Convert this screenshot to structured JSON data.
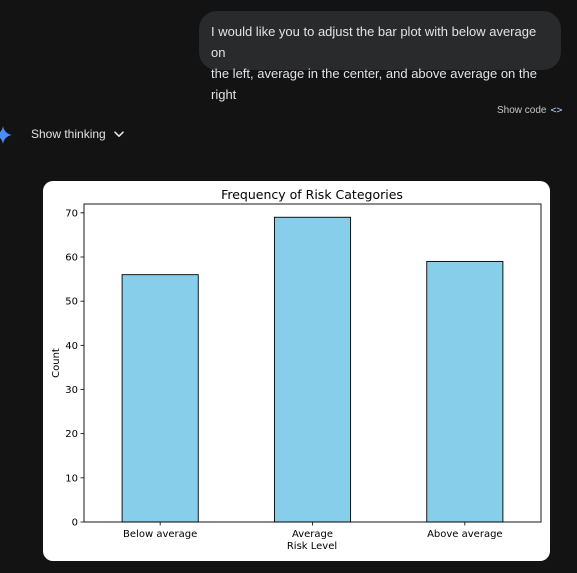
{
  "user_message": {
    "line1": "I would like you to adjust the bar plot with below average on",
    "line2": "the left, average in the center, and above average on the right"
  },
  "response": {
    "show_code_label": "Show code",
    "show_thinking_label": "Show thinking"
  },
  "colors": {
    "background": "#131313",
    "bubble": "#282a2c",
    "bar_fill": "#87ceeb",
    "gem_blue": "#4b8df8"
  },
  "icons": {
    "show_code": "code-brackets-icon",
    "gem": "gemini-sparkle-icon",
    "chevron": "chevron-down-icon"
  },
  "chart_data": {
    "type": "bar",
    "title": "Frequency of Risk Categories",
    "xlabel": "Risk Level",
    "ylabel": "Count",
    "categories": [
      "Below average",
      "Average",
      "Above average"
    ],
    "values": [
      56,
      69,
      59
    ],
    "ylim": [
      0,
      72
    ],
    "yticks": [
      0,
      10,
      20,
      30,
      40,
      50,
      60,
      70
    ],
    "grid": false,
    "bar_color": "#87ceeb"
  }
}
